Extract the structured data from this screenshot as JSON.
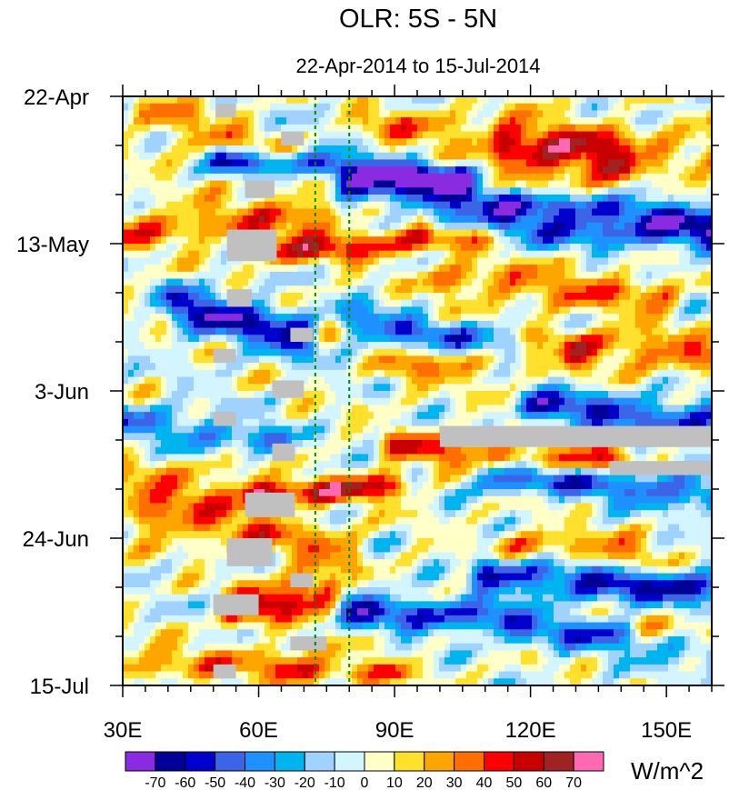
{
  "chart_data": {
    "type": "heatmap",
    "title": "OLR: 5S - 5N",
    "subtitle": "22-Apr-2014 to 15-Jul-2014",
    "x_range": [
      30,
      160
    ],
    "x_ticks": [
      {
        "value": 30,
        "label": "30E"
      },
      {
        "value": 60,
        "label": "60E"
      },
      {
        "value": 90,
        "label": "90E"
      },
      {
        "value": 120,
        "label": "120E"
      },
      {
        "value": 150,
        "label": "150E"
      }
    ],
    "y_range_days": [
      0,
      84
    ],
    "y_ticks": [
      {
        "day": 0,
        "label": "22-Apr"
      },
      {
        "day": 21,
        "label": "13-May"
      },
      {
        "day": 42,
        "label": "3-Jun"
      },
      {
        "day": 63,
        "label": "24-Jun"
      },
      {
        "day": 84,
        "label": "15-Jul"
      }
    ],
    "reference_lines_lon": [
      72.5,
      80
    ],
    "colorbar": {
      "unit_label": "W/m^2",
      "levels": [
        "-70",
        "-60",
        "-50",
        "-40",
        "-30",
        "-20",
        "-10",
        "0",
        "10",
        "20",
        "30",
        "40",
        "50",
        "60",
        "70"
      ],
      "colors": [
        "#8a2be2",
        "#000096",
        "#0000cd",
        "#3c64e6",
        "#1e90ff",
        "#00b4f0",
        "#a0d2ff",
        "#d2f5ff",
        "#ffffc8",
        "#ffe12d",
        "#ffa500",
        "#ff6e00",
        "#ff0000",
        "#c80000",
        "#a02323",
        "#ff69b4"
      ]
    },
    "field_description": "Hovmoller of OLR anomalies (W/m^2), longitude vs time; eastward-propagating negative (blue) anomalies, gray = missing data",
    "bands": [
      {
        "t0": 2,
        "lon0": 35,
        "lon1": 70,
        "slope": 0.25,
        "amp": 28,
        "width": 3.0
      },
      {
        "t0": 9,
        "lon0": 52,
        "lon1": 105,
        "slope": 0.05,
        "amp": -62,
        "width": 2.0
      },
      {
        "t0": 13,
        "lon0": 80,
        "lon1": 160,
        "slope": 0.06,
        "amp": -48,
        "width": 2.2
      },
      {
        "t0": 8,
        "lon0": 115,
        "lon1": 140,
        "slope": 0.08,
        "amp": 45,
        "width": 3.5
      },
      {
        "t0": 4,
        "lon0": 85,
        "lon1": 160,
        "slope": 0.05,
        "amp": 25,
        "width": 3.0
      },
      {
        "t0": 19,
        "lon0": 30,
        "lon1": 75,
        "slope": -0.05,
        "amp": 30,
        "width": 3.2
      },
      {
        "t0": 18,
        "lon0": 100,
        "lon1": 160,
        "slope": 0.04,
        "amp": -40,
        "width": 2.3
      },
      {
        "t0": 22,
        "lon0": 65,
        "lon1": 110,
        "slope": -0.05,
        "amp": 42,
        "width": 2.2
      },
      {
        "t0": 26,
        "lon0": 100,
        "lon1": 150,
        "slope": 0.05,
        "amp": 30,
        "width": 2.8
      },
      {
        "t0": 30,
        "lon0": 42,
        "lon1": 70,
        "slope": 0.15,
        "amp": -58,
        "width": 3.2
      },
      {
        "t0": 32,
        "lon0": 80,
        "lon1": 125,
        "slope": 0.1,
        "amp": -40,
        "width": 2.4
      },
      {
        "t0": 35,
        "lon0": 120,
        "lon1": 160,
        "slope": 0.05,
        "amp": 35,
        "width": 2.6
      },
      {
        "t0": 39,
        "lon0": 90,
        "lon1": 130,
        "slope": -0.05,
        "amp": 28,
        "width": 2.3
      },
      {
        "t0": 44,
        "lon0": 120,
        "lon1": 160,
        "slope": 0.06,
        "amp": -50,
        "width": 2.6
      },
      {
        "t0": 46,
        "lon0": 30,
        "lon1": 65,
        "slope": 0.1,
        "amp": -35,
        "width": 2.6
      },
      {
        "t0": 50,
        "lon0": 90,
        "lon1": 140,
        "slope": 0.05,
        "amp": 40,
        "width": 2.2
      },
      {
        "t0": 54,
        "lon0": 110,
        "lon1": 160,
        "slope": 0.05,
        "amp": -48,
        "width": 2.4
      },
      {
        "t0": 57,
        "lon0": 60,
        "lon1": 90,
        "slope": -0.05,
        "amp": 52,
        "width": 1.9
      },
      {
        "t0": 56,
        "lon0": 30,
        "lon1": 60,
        "slope": 0.0,
        "amp": 25,
        "width": 4.0
      },
      {
        "t0": 60,
        "lon0": 35,
        "lon1": 80,
        "slope": 0.1,
        "amp": 30,
        "width": 3.0
      },
      {
        "t0": 64,
        "lon0": 115,
        "lon1": 145,
        "slope": 0.05,
        "amp": 30,
        "width": 2.4
      },
      {
        "t0": 68,
        "lon0": 110,
        "lon1": 160,
        "slope": 0.05,
        "amp": -55,
        "width": 2.6
      },
      {
        "t0": 73,
        "lon0": 80,
        "lon1": 115,
        "slope": 0.05,
        "amp": -52,
        "width": 2.4
      },
      {
        "t0": 73,
        "lon0": 55,
        "lon1": 75,
        "slope": -0.12,
        "amp": 58,
        "width": 2.6
      },
      {
        "t0": 76,
        "lon0": 120,
        "lon1": 160,
        "slope": 0.05,
        "amp": -40,
        "width": 2.6
      },
      {
        "t0": 76,
        "lon0": 145,
        "lon1": 160,
        "slope": 0.0,
        "amp": 42,
        "width": 2.0
      },
      {
        "t0": 81,
        "lon0": 30,
        "lon1": 70,
        "slope": 0.0,
        "amp": 25,
        "width": 2.6
      },
      {
        "t0": 82,
        "lon0": 65,
        "lon1": 90,
        "slope": 0.0,
        "amp": 35,
        "width": 1.6
      }
    ],
    "missing_data_regions": [
      {
        "lon0": 50.5,
        "lon1": 55.0,
        "d0": 1.0,
        "d1": 3.0
      },
      {
        "lon0": 65.0,
        "lon1": 70.0,
        "d0": 5.0,
        "d1": 7.0
      },
      {
        "lon0": 57.0,
        "lon1": 63.5,
        "d0": 12.0,
        "d1": 14.5
      },
      {
        "lon0": 53.0,
        "lon1": 64.0,
        "d0": 19.0,
        "d1": 23.5
      },
      {
        "lon0": 53.0,
        "lon1": 58.5,
        "d0": 27.5,
        "d1": 30.0
      },
      {
        "lon0": 67.0,
        "lon1": 72.0,
        "d0": 33.0,
        "d1": 35.0
      },
      {
        "lon0": 50.0,
        "lon1": 55.0,
        "d0": 36.0,
        "d1": 38.0
      },
      {
        "lon0": 63.0,
        "lon1": 70.0,
        "d0": 40.5,
        "d1": 43.0
      },
      {
        "lon0": 50.0,
        "lon1": 55.0,
        "d0": 45.0,
        "d1": 47.0
      },
      {
        "lon0": 63.0,
        "lon1": 68.0,
        "d0": 49.5,
        "d1": 52.0
      },
      {
        "lon0": 57.0,
        "lon1": 68.0,
        "d0": 56.5,
        "d1": 60.0
      },
      {
        "lon0": 53.0,
        "lon1": 63.0,
        "d0": 63.0,
        "d1": 67.0
      },
      {
        "lon0": 67.0,
        "lon1": 72.0,
        "d0": 68.0,
        "d1": 70.0
      },
      {
        "lon0": 50.0,
        "lon1": 60.0,
        "d0": 71.0,
        "d1": 74.0
      },
      {
        "lon0": 67.0,
        "lon1": 75.0,
        "d0": 77.0,
        "d1": 79.0
      },
      {
        "lon0": 50.0,
        "lon1": 55.0,
        "d0": 81.0,
        "d1": 83.0
      },
      {
        "lon0": 100.0,
        "lon1": 160.0,
        "d0": 47.0,
        "d1": 50.0
      },
      {
        "lon0": 137.5,
        "lon1": 160.0,
        "d0": 52.0,
        "d1": 54.0
      }
    ]
  }
}
